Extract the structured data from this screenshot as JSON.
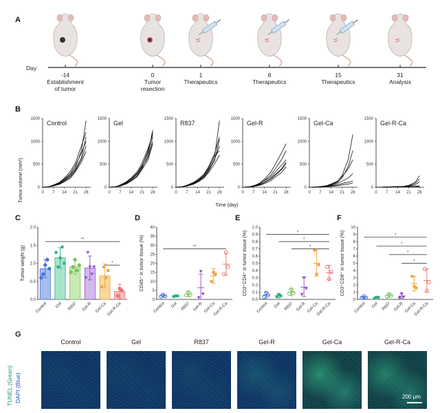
{
  "panels": {
    "a": {
      "letter": "A",
      "day_label": "Day",
      "timeline": [
        {
          "day": "-14",
          "caption": [
            "Establishment",
            "of tumor"
          ]
        },
        {
          "day": "0",
          "caption": [
            "Tumor",
            "resection"
          ]
        },
        {
          "day": "1",
          "caption": [
            "Therapeutics"
          ]
        },
        {
          "day": "8",
          "caption": [
            "Therapeutics"
          ]
        },
        {
          "day": "15",
          "caption": [
            "Therapeutics"
          ]
        },
        {
          "day": "31",
          "caption": [
            "Analysis"
          ]
        }
      ]
    },
    "b": {
      "letter": "B",
      "ylabel": "Tumor volume (mm³)",
      "xlabel": "Time (day)",
      "groups": [
        "Control",
        "Gel",
        "R837",
        "Gel-R",
        "Gel-Ca",
        "Gel-R-Ca"
      ],
      "yticks": [
        "0",
        "500",
        "1000",
        "1500"
      ],
      "xticks": [
        "0",
        "7",
        "14",
        "21",
        "28"
      ]
    },
    "c": {
      "letter": "C",
      "ylabel": "Tumor weight (g)",
      "yticks": [
        "0.0",
        "0.5",
        "1.0",
        "1.5",
        "2.0"
      ],
      "sig": [
        "**",
        "*"
      ]
    },
    "d": {
      "letter": "D",
      "ylabel": "CD45⁺ in tumor tissue (%)",
      "yticks": [
        "0",
        "5",
        "10",
        "15",
        "20",
        "25",
        "30",
        "35",
        "40"
      ],
      "sig": [
        "**"
      ]
    },
    "e": {
      "letter": "E",
      "ylabel": "CD3⁺CD4⁺ in tumor tissue (%)",
      "yticks": [
        "0.0",
        "0.1",
        "0.2",
        "0.3",
        "0.4",
        "0.5",
        "0.6",
        "0.7",
        "0.8",
        "0.9",
        "1.0"
      ],
      "sig": [
        "*",
        "*",
        "*"
      ]
    },
    "f": {
      "letter": "F",
      "ylabel": "CD3⁺CD8⁺ in tumor tissue (%)",
      "yticks": [
        "0",
        "1",
        "2",
        "3",
        "4",
        "5",
        "6",
        "7",
        "8",
        "9",
        "10"
      ],
      "sig": [
        "*",
        "*",
        "*",
        "*"
      ]
    },
    "g": {
      "letter": "G",
      "ylabel_green": "TUNEL (Green)",
      "ylabel_blue": "DAPI (Blue)",
      "titles": [
        "Control",
        "Gel",
        "R837",
        "Gel-R",
        "Gel-Ca",
        "Gel-R-Ca"
      ],
      "scale_bar": "200 μm"
    }
  },
  "colors": {
    "groups": [
      "#4a74d9",
      "#2fae7f",
      "#7cc25a",
      "#8c4fc6",
      "#f0a23b",
      "#ef6f6f"
    ],
    "bars": [
      "#a7bdf0",
      "#a9e3cc",
      "#c8e9b3",
      "#d3b9ee",
      "#fad59c",
      "#f8c0c0"
    ]
  },
  "chart_data": [
    {
      "type": "line",
      "panel": "B",
      "x": [
        0,
        4,
        7,
        11,
        14,
        18,
        21,
        25,
        28
      ],
      "ylim": [
        0,
        1500
      ],
      "xlim": [
        0,
        31
      ],
      "series_groups": [
        {
          "name": "Control",
          "lines": [
            [
              0,
              10,
              40,
              90,
              160,
              280,
              420,
              800,
              1450
            ],
            [
              0,
              8,
              30,
              80,
              150,
              250,
              380,
              650,
              1100
            ],
            [
              0,
              12,
              50,
              110,
              200,
              350,
              520,
              900,
              1200
            ],
            [
              0,
              9,
              35,
              70,
              130,
              230,
              360,
              600,
              900
            ],
            [
              0,
              11,
              45,
              100,
              180,
              300,
              470,
              750,
              1000
            ],
            [
              0,
              7,
              28,
              65,
              120,
              200,
              330,
              550,
              780
            ]
          ]
        },
        {
          "name": "Gel",
          "lines": [
            [
              0,
              10,
              40,
              100,
              170,
              300,
              450,
              800,
              1200
            ],
            [
              0,
              8,
              30,
              80,
              140,
              250,
              400,
              700,
              1100
            ],
            [
              0,
              12,
              50,
              120,
              200,
              340,
              520,
              850,
              1150
            ],
            [
              0,
              9,
              35,
              90,
              160,
              280,
              430,
              650,
              1000
            ],
            [
              0,
              11,
              45,
              110,
              180,
              310,
              470,
              750,
              1250
            ],
            [
              0,
              7,
              25,
              70,
              130,
              230,
              380,
              600,
              950
            ]
          ]
        },
        {
          "name": "R837",
          "lines": [
            [
              0,
              10,
              35,
              80,
              140,
              250,
              400,
              700,
              1450
            ],
            [
              0,
              8,
              30,
              70,
              120,
              220,
              350,
              600,
              1050
            ],
            [
              0,
              12,
              45,
              100,
              170,
              280,
              450,
              750,
              1100
            ],
            [
              0,
              9,
              30,
              75,
              130,
              230,
              370,
              620,
              900
            ],
            [
              0,
              11,
              40,
              90,
              150,
              260,
              420,
              680,
              800
            ],
            [
              0,
              7,
              25,
              60,
              110,
              200,
              320,
              520,
              700
            ]
          ]
        },
        {
          "name": "Gel-R",
          "lines": [
            [
              0,
              8,
              30,
              90,
              180,
              320,
              500,
              750,
              950
            ],
            [
              0,
              7,
              25,
              70,
              150,
              260,
              400,
              600,
              800
            ],
            [
              0,
              9,
              35,
              80,
              140,
              220,
              330,
              480,
              600
            ],
            [
              0,
              6,
              20,
              50,
              100,
              170,
              260,
              380,
              520
            ],
            [
              0,
              8,
              25,
              60,
              110,
              190,
              280,
              400,
              550
            ],
            [
              0,
              5,
              15,
              40,
              80,
              140,
              220,
              320,
              450
            ]
          ]
        },
        {
          "name": "Gel-Ca",
          "lines": [
            [
              0,
              5,
              15,
              30,
              60,
              120,
              250,
              600,
              1150
            ],
            [
              0,
              4,
              12,
              25,
              50,
              100,
              200,
              450,
              800
            ],
            [
              0,
              6,
              15,
              35,
              70,
              130,
              230,
              400,
              600
            ],
            [
              0,
              3,
              10,
              20,
              40,
              80,
              130,
              200,
              300
            ],
            [
              0,
              4,
              10,
              15,
              30,
              50,
              80,
              110,
              130
            ],
            [
              0,
              3,
              8,
              12,
              20,
              35,
              50,
              70,
              90
            ]
          ]
        },
        {
          "name": "Gel-R-Ca",
          "lines": [
            [
              0,
              3,
              8,
              12,
              15,
              20,
              40,
              100,
              250
            ],
            [
              0,
              2,
              6,
              10,
              12,
              18,
              30,
              80,
              180
            ],
            [
              0,
              3,
              7,
              10,
              14,
              18,
              25,
              50,
              120
            ],
            [
              0,
              2,
              5,
              8,
              10,
              12,
              15,
              20,
              30
            ],
            [
              0,
              2,
              4,
              6,
              8,
              10,
              12,
              15,
              20
            ],
            [
              0,
              1,
              3,
              5,
              6,
              8,
              10,
              12,
              15
            ]
          ]
        }
      ]
    },
    {
      "type": "bar",
      "panel": "C",
      "categories": [
        "Control",
        "Gel",
        "R837",
        "Gel-R",
        "Gel-Ca",
        "Gel-R-Ca"
      ],
      "values": [
        0.85,
        1.15,
        0.9,
        0.87,
        0.65,
        0.22
      ],
      "errors": [
        0.25,
        0.28,
        0.2,
        0.33,
        0.33,
        0.2
      ],
      "points": [
        [
          0.6,
          0.7,
          0.95,
          1.1,
          0.85
        ],
        [
          1.3,
          0.9,
          1.15,
          1.45,
          1.0
        ],
        [
          0.75,
          0.9,
          1.1,
          0.8,
          0.95
        ],
        [
          0.6,
          1.3,
          0.9,
          0.7,
          0.9
        ],
        [
          0.35,
          0.9,
          0.6,
          0.8
        ],
        [
          0.1,
          0.3,
          0.25
        ]
      ],
      "ylim": [
        0,
        2.0
      ]
    },
    {
      "type": "scatter",
      "panel": "D",
      "categories": [
        "Control",
        "Gel",
        "R837",
        "Gel-R",
        "Gel-Ca",
        "Gel-R-Ca"
      ],
      "means": [
        2.0,
        1.8,
        3.0,
        6.5,
        13.0,
        19.5
      ],
      "errors": [
        0.8,
        0.5,
        1.5,
        7.5,
        4.0,
        6.0
      ],
      "points": [
        [
          1.5,
          2.6,
          1.8
        ],
        [
          1.6,
          2.0,
          1.9
        ],
        [
          2.2,
          4.0,
          2.7
        ],
        [
          1.0,
          15.5,
          3.0
        ],
        [
          10.0,
          15.0,
          14.0
        ],
        [
          14.0,
          26.0,
          18.0
        ]
      ],
      "ylim": [
        0,
        40
      ]
    },
    {
      "type": "scatter",
      "panel": "E",
      "categories": [
        "Control",
        "Gel",
        "R837",
        "Gel-R",
        "Gel-Ca",
        "Gel-R-Ca"
      ],
      "means": [
        0.06,
        0.05,
        0.1,
        0.17,
        0.5,
        0.37
      ],
      "errors": [
        0.04,
        0.03,
        0.05,
        0.13,
        0.18,
        0.1
      ],
      "points": [
        [
          0.03,
          0.09,
          0.06
        ],
        [
          0.04,
          0.07,
          0.05
        ],
        [
          0.08,
          0.14,
          0.09
        ],
        [
          0.07,
          0.3,
          0.15
        ],
        [
          0.68,
          0.35,
          0.48
        ],
        [
          0.45,
          0.28,
          0.38
        ]
      ],
      "ylim": [
        0,
        1.0
      ]
    },
    {
      "type": "scatter",
      "panel": "F",
      "categories": [
        "Control",
        "Gel",
        "R837",
        "Gel-R",
        "Gel-Ca",
        "Gel-R-Ca"
      ],
      "means": [
        0.3,
        0.25,
        0.55,
        0.45,
        2.2,
        2.6
      ],
      "errors": [
        0.15,
        0.1,
        0.25,
        0.3,
        1.0,
        1.6
      ],
      "points": [
        [
          0.2,
          0.45,
          0.25
        ],
        [
          0.15,
          0.3,
          0.3
        ],
        [
          0.4,
          0.75,
          0.5
        ],
        [
          0.2,
          0.8,
          0.35
        ],
        [
          3.2,
          1.8,
          1.6
        ],
        [
          4.2,
          1.2,
          2.4
        ]
      ],
      "ylim": [
        0,
        10
      ]
    }
  ]
}
